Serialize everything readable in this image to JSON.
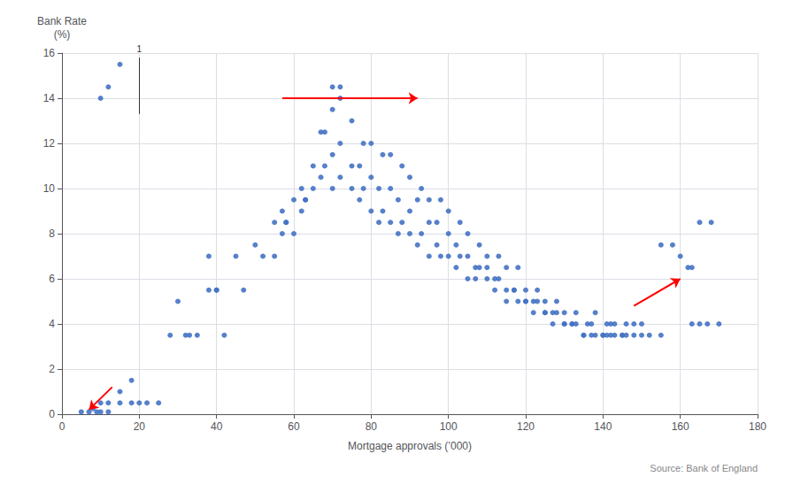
{
  "chart_data": {
    "type": "scatter",
    "xlabel": "Mortgage approvals (’000)",
    "ylabel": "Bank Rate\n(%)",
    "source": "Source: Bank of England",
    "xlim": [
      0,
      180
    ],
    "ylim": [
      0,
      16
    ],
    "xticks": [
      0,
      20,
      40,
      60,
      80,
      100,
      120,
      140,
      160
    ],
    "yticks": [
      0,
      2,
      4,
      6,
      8,
      10,
      12,
      14,
      16
    ],
    "grid": true,
    "color": "#4472C4",
    "x": [
      5,
      7,
      9,
      10,
      12,
      15,
      18,
      20,
      22,
      25,
      8,
      10,
      12,
      15,
      18,
      28,
      30,
      32,
      33,
      35,
      38,
      40,
      38,
      40,
      42,
      45,
      47,
      50,
      52,
      55,
      57,
      58,
      60,
      62,
      63,
      65,
      67,
      68,
      70,
      70,
      72,
      72,
      75,
      75,
      77,
      78,
      80,
      80,
      82,
      83,
      85,
      85,
      87,
      88,
      90,
      90,
      92,
      93,
      95,
      95,
      97,
      98,
      100,
      100,
      102,
      103,
      105,
      105,
      107,
      108,
      110,
      110,
      112,
      113,
      115,
      115,
      117,
      118,
      120,
      120,
      122,
      123,
      125,
      125,
      127,
      128,
      130,
      130,
      132,
      133,
      135,
      136,
      137,
      138,
      140,
      141,
      142,
      143,
      145,
      146,
      148,
      150,
      155,
      158,
      160,
      162,
      163,
      165,
      168,
      163,
      165,
      167,
      170,
      55,
      57,
      58,
      60,
      62,
      63,
      65,
      67,
      68,
      70,
      72,
      75,
      77,
      78,
      80,
      82,
      83,
      85,
      87,
      88,
      90,
      92,
      93,
      95,
      97,
      98,
      100,
      102,
      103,
      105,
      107,
      108,
      110,
      112,
      113,
      115,
      117,
      118,
      120,
      122,
      123,
      125,
      127,
      128,
      130,
      132,
      133,
      135,
      137,
      138,
      140,
      141,
      142,
      143,
      145,
      146,
      148,
      150,
      152,
      155,
      10,
      12,
      15,
      70,
      72
    ],
    "values": [
      0.1,
      0.1,
      0.1,
      0.1,
      0.1,
      0.5,
      0.5,
      0.5,
      0.5,
      0.5,
      0.25,
      0.5,
      0.5,
      1.0,
      1.5,
      3.5,
      5.0,
      3.5,
      3.5,
      3.5,
      5.5,
      5.5,
      7.0,
      5.5,
      3.5,
      7.0,
      5.5,
      7.5,
      7.0,
      8.5,
      9.0,
      8.5,
      9.5,
      10.0,
      9.5,
      11.0,
      12.5,
      12.5,
      11.5,
      13.5,
      12.0,
      14.0,
      11.0,
      13.0,
      11.0,
      12.0,
      10.5,
      12.0,
      10.0,
      11.5,
      10.0,
      11.5,
      9.5,
      11.0,
      9.0,
      10.5,
      9.5,
      10.0,
      8.5,
      9.5,
      8.5,
      9.5,
      8.0,
      9.0,
      7.5,
      8.5,
      7.0,
      8.0,
      6.5,
      7.5,
      6.5,
      7.0,
      6.0,
      7.0,
      5.5,
      6.5,
      5.5,
      6.5,
      5.0,
      5.5,
      5.0,
      5.5,
      4.5,
      5.0,
      4.5,
      5.0,
      4.0,
      4.5,
      4.0,
      4.5,
      3.5,
      4.0,
      3.5,
      4.5,
      3.5,
      4.0,
      3.5,
      4.0,
      3.5,
      4.0,
      4.0,
      4.0,
      7.5,
      7.5,
      7.0,
      6.5,
      6.5,
      8.5,
      8.5,
      4.0,
      4.0,
      4.0,
      4.0,
      7.0,
      8.0,
      8.5,
      8.0,
      9.0,
      9.5,
      10.0,
      10.5,
      11.0,
      10.0,
      10.5,
      10.0,
      9.5,
      10.0,
      9.0,
      8.5,
      9.0,
      8.5,
      8.0,
      8.5,
      8.0,
      7.5,
      8.0,
      7.0,
      7.5,
      7.0,
      7.0,
      6.5,
      7.0,
      6.0,
      6.0,
      6.5,
      6.0,
      5.5,
      6.0,
      5.0,
      5.5,
      5.0,
      5.0,
      4.5,
      5.0,
      4.5,
      4.0,
      4.5,
      4.0,
      4.0,
      4.0,
      3.5,
      4.0,
      3.5,
      3.5,
      3.5,
      4.0,
      3.5,
      3.5,
      3.5,
      3.5,
      3.5,
      3.5,
      3.5,
      14.0,
      14.5,
      15.5,
      14.5,
      14.5
    ],
    "annotations": [
      {
        "type": "arrow",
        "from": [
          57,
          14.0
        ],
        "to": [
          92,
          14.0
        ],
        "color": "red"
      },
      {
        "type": "arrow",
        "from": [
          148,
          4.8
        ],
        "to": [
          160,
          6.0
        ],
        "color": "red"
      },
      {
        "type": "arrow",
        "from": [
          13,
          1.2
        ],
        "to": [
          7,
          0.2
        ],
        "color": "red"
      },
      {
        "type": "line",
        "from": [
          20,
          13.3
        ],
        "to": [
          20,
          15.8
        ],
        "color": "#333333",
        "text": "1"
      }
    ]
  }
}
